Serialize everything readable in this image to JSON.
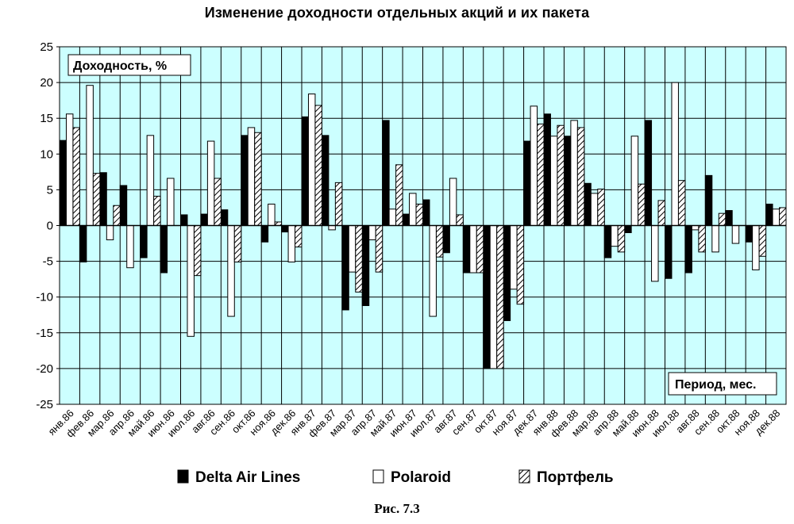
{
  "chart_data": {
    "type": "bar",
    "title": "Изменение доходности отдельных акций и их пакета",
    "ylabel": "Доходность, %",
    "xlabel": "Период, мес.",
    "caption": "Рис. 7.3",
    "ylim": [
      -25,
      25
    ],
    "yticks": [
      25,
      20,
      15,
      10,
      5,
      0,
      -5,
      -10,
      -15,
      -20,
      -25
    ],
    "grid": true,
    "legend_position": "bottom",
    "colors": {
      "plot_background": "#ccffff",
      "grid": "#000000",
      "bar_border": "#000000"
    },
    "categories": [
      "янв.86",
      "фев.86",
      "мар.86",
      "апр.86",
      "май.86",
      "июн.86",
      "июл.86",
      "авг.86",
      "сен.86",
      "окт.86",
      "ноя.86",
      "дек.86",
      "янв.87",
      "фев.87",
      "мар.87",
      "апр.87",
      "май.87",
      "июн.87",
      "июл.87",
      "авг.87",
      "сен.87",
      "окт.87",
      "ноя.87",
      "дек.87",
      "янв.88",
      "фев.88",
      "мар.88",
      "апр.88",
      "май.88",
      "июн.88",
      "июл.88",
      "авг.88",
      "сен.88",
      "окт.88",
      "ноя.88",
      "дек.88"
    ],
    "series": [
      {
        "name": "Delta Air Lines",
        "pattern": "solid",
        "values": [
          11.9,
          -5.1,
          7.4,
          5.6,
          -4.5,
          -6.6,
          1.5,
          1.6,
          2.2,
          12.6,
          -2.3,
          -0.9,
          15.2,
          12.6,
          -11.8,
          -11.2,
          14.7,
          1.6,
          3.6,
          -3.8,
          -6.6,
          -20.0,
          -13.3,
          11.8,
          15.6,
          12.5,
          5.9,
          -4.5,
          -1.0,
          14.7,
          -7.4,
          -6.6,
          7.0,
          2.1,
          -2.3,
          3.0
        ]
      },
      {
        "name": "Polaroid",
        "pattern": "hollow",
        "values": [
          15.6,
          19.6,
          -2.0,
          -5.9,
          12.6,
          6.6,
          -15.5,
          11.8,
          -12.7,
          13.7,
          3.0,
          -5.1,
          18.4,
          -0.6,
          -6.5,
          -2.0,
          2.3,
          4.5,
          -12.7,
          6.6,
          -6.6,
          -20.0,
          -8.9,
          16.7,
          12.5,
          14.7,
          4.5,
          -2.9,
          12.5,
          -7.8,
          20.0,
          -0.6,
          -3.7,
          -2.5,
          -6.2,
          2.3
        ]
      },
      {
        "name": "Портфель",
        "pattern": "hatched",
        "values": [
          13.7,
          7.3,
          2.8,
          null,
          4.1,
          null,
          -7.0,
          6.6,
          -5.1,
          13.0,
          0.5,
          -3.0,
          16.8,
          6.0,
          -9.3,
          -6.5,
          8.5,
          3.0,
          -4.4,
          1.5,
          -6.6,
          -20.0,
          -11.0,
          14.2,
          14.0,
          13.7,
          5.1,
          -3.7,
          5.8,
          3.5,
          6.3,
          -3.7,
          1.7,
          null,
          -4.3,
          2.5
        ]
      }
    ]
  }
}
